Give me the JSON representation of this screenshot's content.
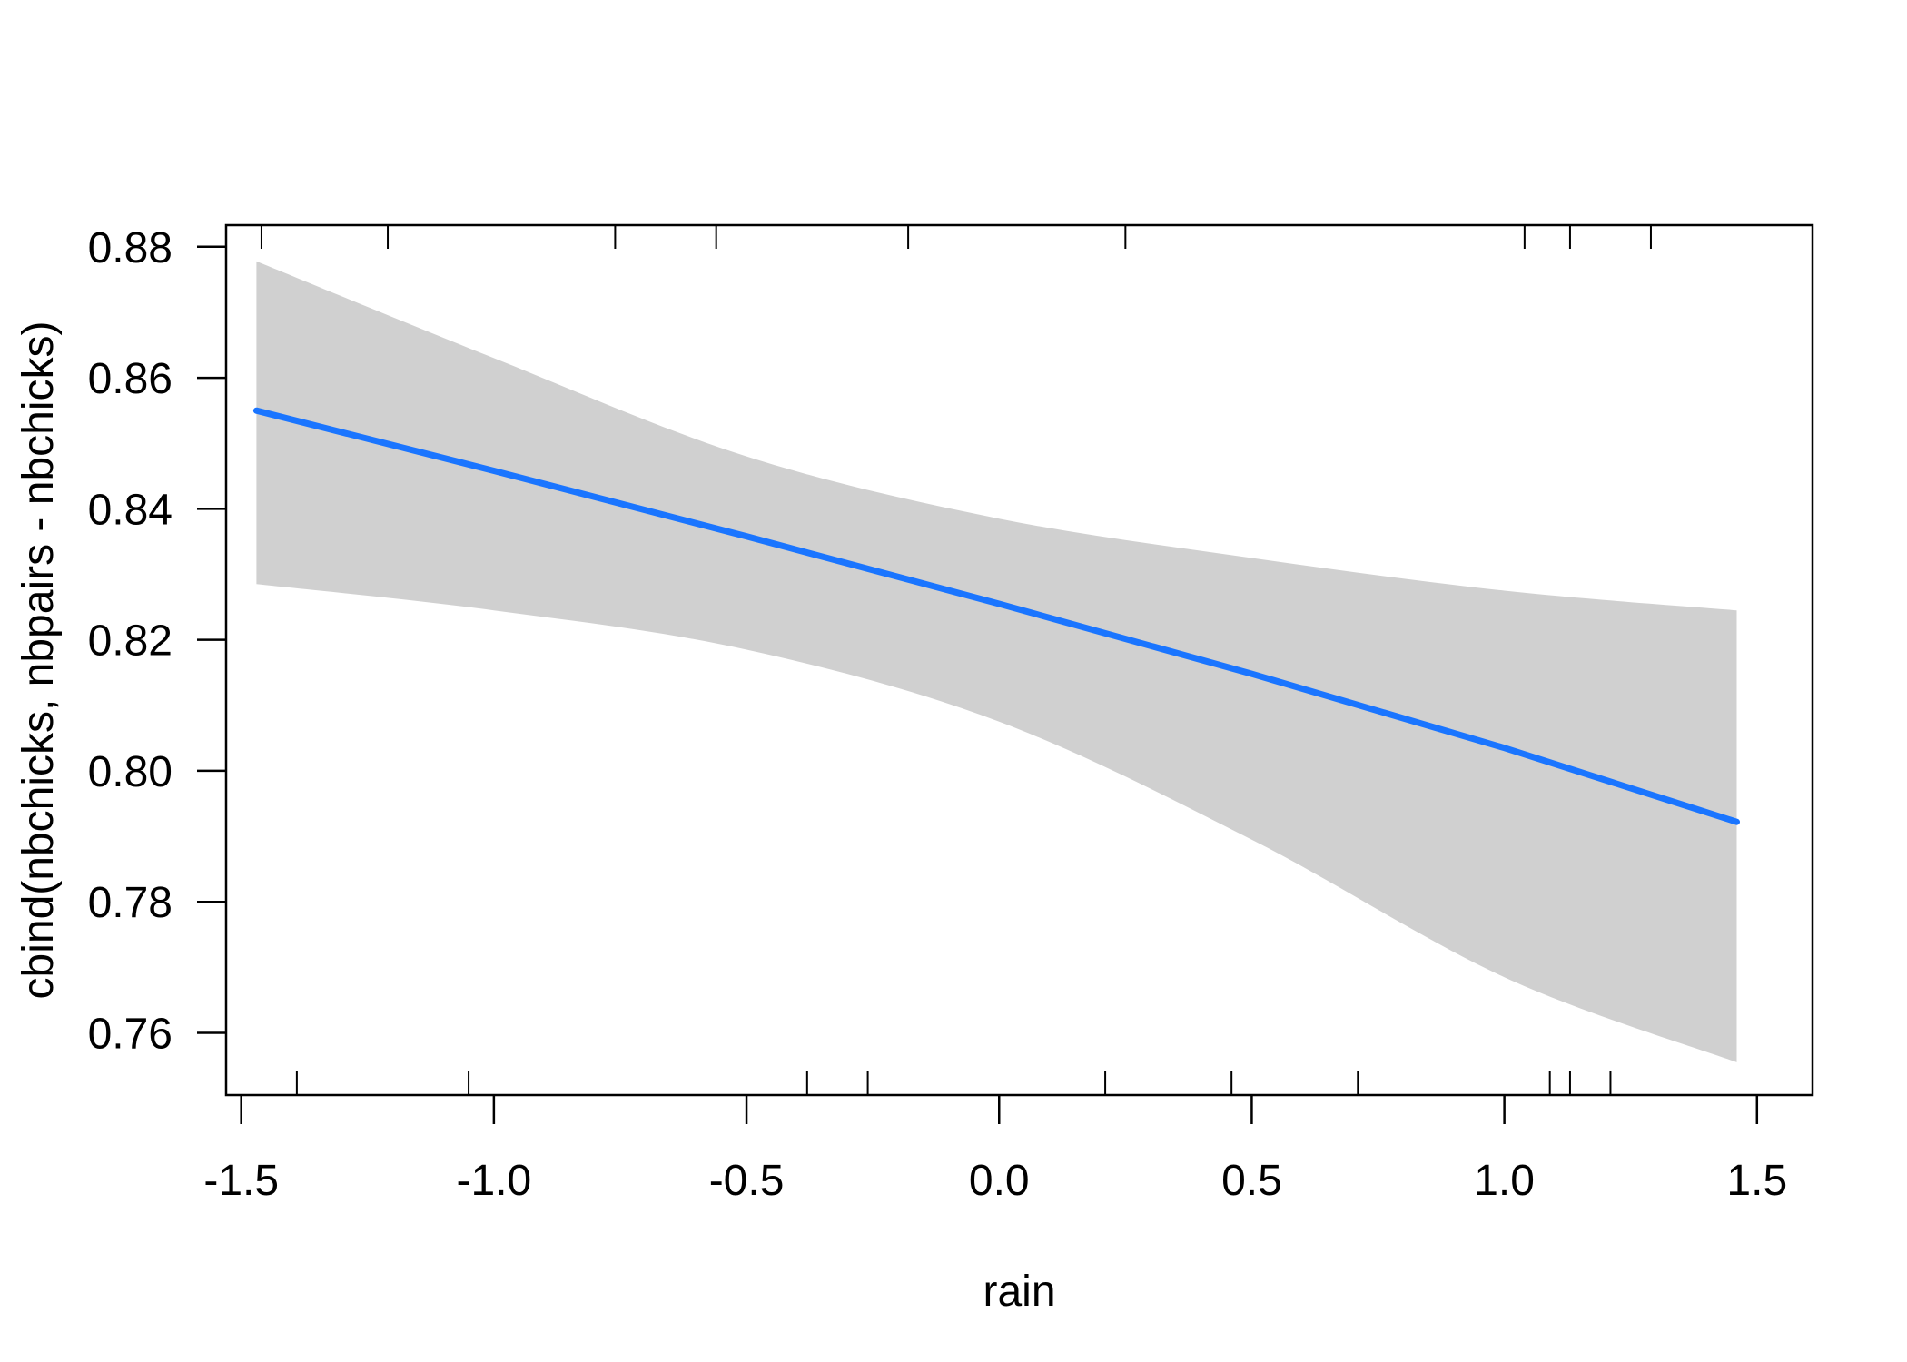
{
  "chart_data": {
    "type": "line",
    "title": "",
    "xlabel": "rain",
    "ylabel": "cbind(nbchicks, nbpairs - nbchicks)",
    "xlim": [
      -1.53,
      1.61
    ],
    "ylim": [
      0.7505,
      0.8833
    ],
    "x_ticks": [
      -1.5,
      -1.0,
      -0.5,
      0.0,
      0.5,
      1.0,
      1.5
    ],
    "x_tick_labels": [
      "-1.5",
      "-1.0",
      "-0.5",
      "0.0",
      "0.5",
      "1.0",
      "1.5"
    ],
    "y_ticks": [
      0.76,
      0.78,
      0.8,
      0.82,
      0.84,
      0.86,
      0.88
    ],
    "y_tick_labels": [
      "0.76",
      "0.78",
      "0.80",
      "0.82",
      "0.84",
      "0.86",
      "0.88"
    ],
    "grid": false,
    "line_color": "#1a75ff",
    "band_color": "#d0d0d0",
    "series": [
      {
        "x": [
          -1.47,
          -1.0,
          -0.5,
          0.0,
          0.5,
          1.0,
          1.46
        ],
        "fit": [
          0.855,
          0.8458,
          0.8358,
          0.8255,
          0.8148,
          0.8035,
          0.7922
        ],
        "lower": [
          0.8285,
          0.8245,
          0.8185,
          0.8075,
          0.7895,
          0.7685,
          0.7555
        ],
        "upper": [
          0.8778,
          0.863,
          0.848,
          0.8385,
          0.8325,
          0.8275,
          0.8245
        ]
      }
    ],
    "rug_bottom": [
      -1.39,
      -1.05,
      -0.38,
      -0.26,
      0.21,
      0.46,
      0.71,
      1.09,
      1.13,
      1.21
    ],
    "rug_top": [
      -1.46,
      -1.21,
      -0.76,
      -0.56,
      -0.18,
      0.25,
      1.04,
      1.13,
      1.29
    ]
  }
}
